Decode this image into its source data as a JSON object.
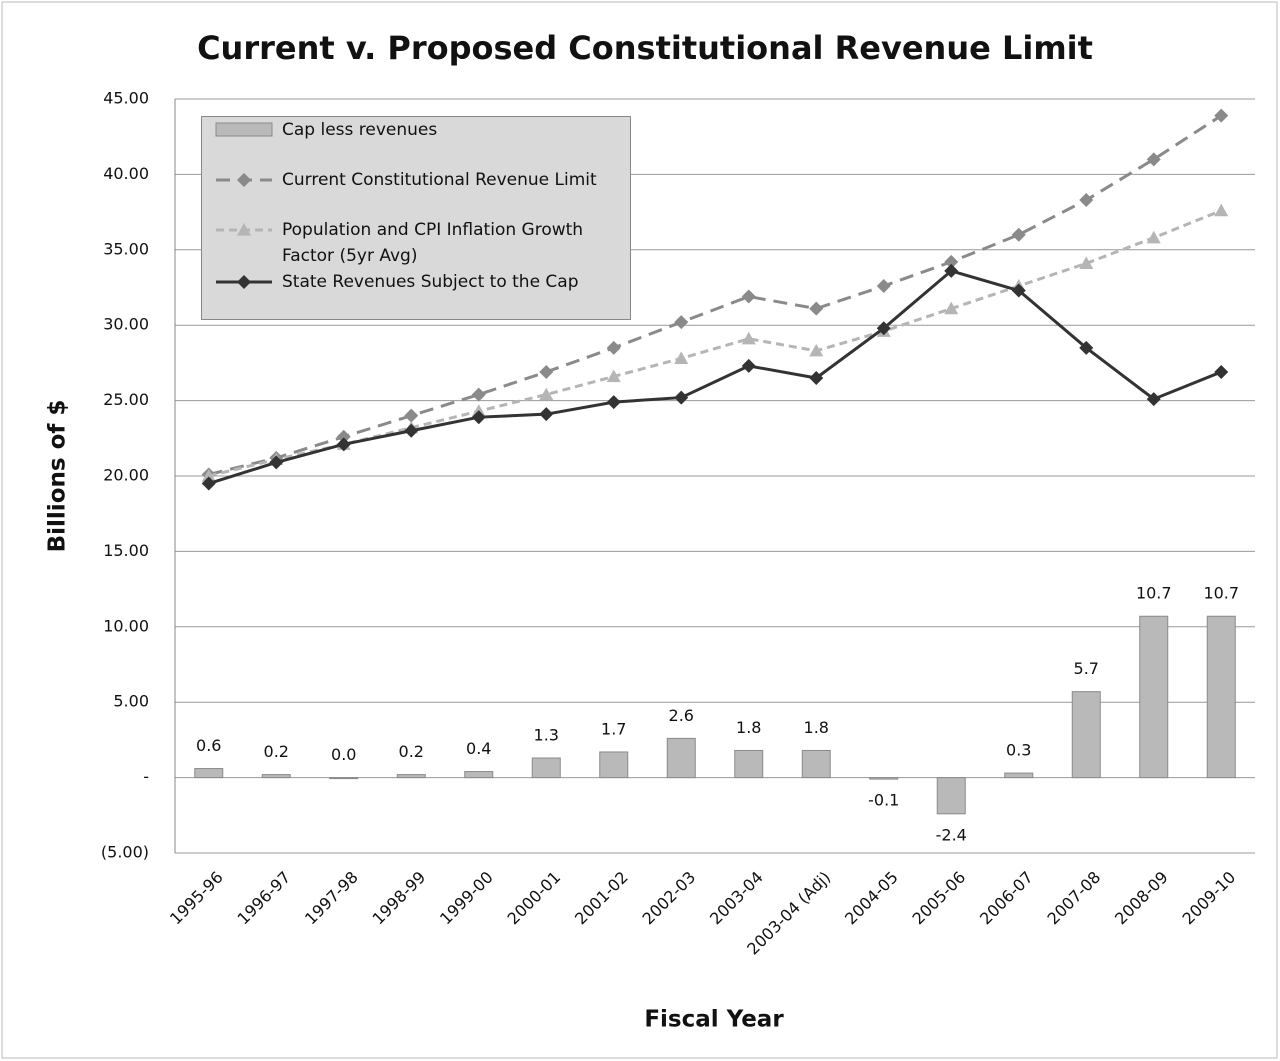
{
  "chart_data": {
    "type": "combo",
    "title": "Current v. Proposed Constitutional Revenue Limit",
    "x_label": "Fiscal Year",
    "y_label": "Billions of $",
    "categories": [
      "1995-96",
      "1996-97",
      "1997-98",
      "1998-99",
      "1999-00",
      "2000-01",
      "2001-02",
      "2002-03",
      "2003-04",
      "2003-04 (Adj)",
      "2004-05",
      "2005-06",
      "2006-07",
      "2007-08",
      "2008-09",
      "2009-10"
    ],
    "ylim": [
      -5,
      45
    ],
    "yticks": [
      {
        "value": -5,
        "label": "(5.00)"
      },
      {
        "value": 0,
        "label": "-"
      },
      {
        "value": 5,
        "label": "5.00"
      },
      {
        "value": 10,
        "label": "10.00"
      },
      {
        "value": 15,
        "label": "15.00"
      },
      {
        "value": 20,
        "label": "20.00"
      },
      {
        "value": 25,
        "label": "25.00"
      },
      {
        "value": 30,
        "label": "30.00"
      },
      {
        "value": 35,
        "label": "35.00"
      },
      {
        "value": 40,
        "label": "40.00"
      },
      {
        "value": 45,
        "label": "45.00"
      }
    ],
    "grid": true,
    "legend": "top-left",
    "series": [
      {
        "name": "Cap less revenues",
        "type": "bar",
        "color": "#b9b9b9",
        "values": [
          0.6,
          0.2,
          0.0,
          0.2,
          0.4,
          1.3,
          1.7,
          2.6,
          1.8,
          1.8,
          -0.1,
          -2.4,
          0.3,
          5.7,
          10.7,
          10.7
        ],
        "value_labels": [
          "0.6",
          "0.2",
          "0.0",
          "0.2",
          "0.4",
          "1.3",
          "1.7",
          "2.6",
          "1.8",
          "1.8",
          "-0.1",
          "-2.4",
          "0.3",
          "5.7",
          "10.7",
          "10.7"
        ]
      },
      {
        "name": "Current Constitutional Revenue Limit",
        "type": "line",
        "marker": "diamond",
        "dash": "14 8",
        "color": "#8a8a8a",
        "values": [
          20.1,
          21.2,
          22.6,
          24.0,
          25.4,
          26.9,
          28.5,
          30.2,
          31.9,
          31.1,
          32.6,
          34.2,
          36.0,
          38.3,
          41.0,
          43.9
        ]
      },
      {
        "name": "Population and CPI Inflation Growth Factor (5yr Avg)",
        "type": "line",
        "marker": "triangle",
        "dash": "8 5",
        "color": "#b5b5b5",
        "values": [
          20.0,
          21.1,
          22.1,
          23.2,
          24.3,
          25.4,
          26.6,
          27.8,
          29.1,
          28.3,
          29.6,
          31.1,
          32.6,
          34.1,
          35.8,
          37.6
        ]
      },
      {
        "name": "State Revenues Subject to the Cap",
        "type": "line",
        "marker": "diamond",
        "dash": "",
        "color": "#333333",
        "values": [
          19.5,
          20.9,
          22.1,
          23.0,
          23.9,
          24.1,
          24.9,
          25.2,
          27.3,
          26.5,
          29.8,
          33.6,
          32.3,
          28.5,
          25.1,
          26.9
        ]
      }
    ]
  }
}
